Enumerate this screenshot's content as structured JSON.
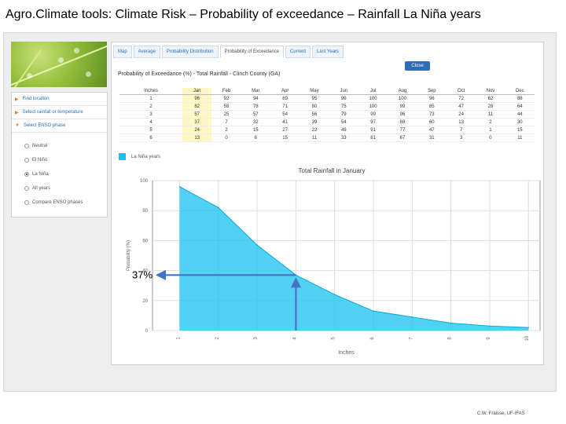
{
  "slide": {
    "title": "Agro.Climate tools: Climate Risk – Probability of exceedance – Rainfall La Niña years",
    "credit": "C.W. Fraisse, UF-IFAS"
  },
  "sidebar": {
    "items": [
      {
        "label": "Find location"
      },
      {
        "label": "Select rainfall or temperature"
      },
      {
        "label": "Select ENSO phase"
      }
    ],
    "enso_options": [
      {
        "label": "Neutral",
        "selected": false
      },
      {
        "label": "El Niño",
        "selected": false
      },
      {
        "label": "La Niña",
        "selected": true
      },
      {
        "label": "All years",
        "selected": false
      },
      {
        "label": "Compare ENSO phases",
        "selected": false
      }
    ]
  },
  "tabs": [
    {
      "label": "Map",
      "active": false
    },
    {
      "label": "Average",
      "active": false
    },
    {
      "label": "Probability Distribution",
      "active": false
    },
    {
      "label": "Probability of Exceedance",
      "active": true
    },
    {
      "label": "Current",
      "active": false
    },
    {
      "label": "Last Years",
      "active": false
    }
  ],
  "close_label": "Close",
  "table": {
    "title": "Probability of Exceedance (%) - Total Rainfall - Clinch County (GA)",
    "headers": [
      "Inches",
      "Jan",
      "Feb",
      "Mar",
      "Apr",
      "May",
      "Jun",
      "Jul",
      "Aug",
      "Sep",
      "Oct",
      "Nov",
      "Dec"
    ],
    "rows": [
      [
        "1",
        "96",
        "92",
        "94",
        "89",
        "95",
        "99",
        "100",
        "100",
        "96",
        "72",
        "62",
        "88"
      ],
      [
        "2",
        "82",
        "58",
        "78",
        "71",
        "80",
        "75",
        "100",
        "99",
        "85",
        "47",
        "28",
        "64"
      ],
      [
        "3",
        "57",
        "25",
        "57",
        "54",
        "56",
        "79",
        "99",
        "96",
        "73",
        "24",
        "11",
        "44"
      ],
      [
        "4",
        "37",
        "7",
        "32",
        "41",
        "39",
        "54",
        "97",
        "88",
        "60",
        "13",
        "2",
        "30"
      ],
      [
        "5",
        "24",
        "2",
        "15",
        "27",
        "22",
        "49",
        "91",
        "77",
        "47",
        "7",
        "1",
        "15"
      ],
      [
        "6",
        "13",
        "0",
        "6",
        "15",
        "11",
        "33",
        "81",
        "67",
        "31",
        "3",
        "0",
        "11"
      ]
    ]
  },
  "legend_label": "La Niña years",
  "chart_data": {
    "type": "area",
    "title": "Total Rainfall in January",
    "xlabel": "Inches",
    "ylabel": "Probability (%)",
    "x": [
      1,
      2,
      3,
      4,
      5,
      6,
      7,
      8,
      9,
      10
    ],
    "y": [
      96,
      82,
      57,
      37,
      24,
      13,
      9,
      5,
      3,
      2
    ],
    "xlim": [
      0.3,
      10.3
    ],
    "ylim": [
      0,
      100
    ],
    "yticks": [
      0,
      20,
      40,
      60,
      80,
      100
    ],
    "grid": true,
    "color": "#18c3ef",
    "annotation": {
      "label": "37%",
      "x": 4,
      "y": 37
    }
  }
}
